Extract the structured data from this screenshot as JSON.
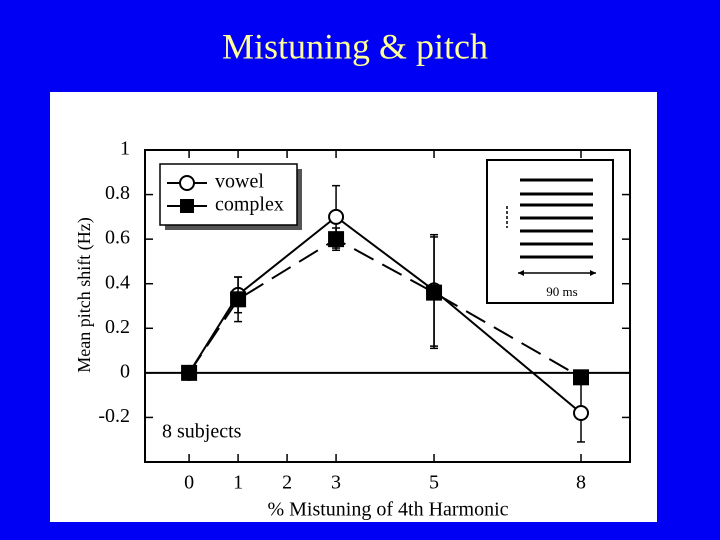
{
  "chart_data": {
    "type": "line",
    "title": "Mistuning & pitch",
    "x_label": "% Mistuning of 4th Harmonic",
    "y_label": "Mean pitch shift (Hz)",
    "annotations": [
      "8 subjects",
      "90 ms"
    ],
    "x": [
      0,
      1,
      3,
      5,
      8
    ],
    "xlim": [
      -0.9,
      9
    ],
    "xticks": [
      0,
      1,
      2,
      3,
      5,
      8
    ],
    "ylim": [
      -0.4,
      1
    ],
    "yticks": [
      -0.2,
      0,
      0.2,
      0.4,
      0.6,
      0.8,
      1
    ],
    "series": [
      {
        "name": "vowel",
        "color": "#000000",
        "marker": "open-circle",
        "dash": false,
        "values": [
          0,
          0.35,
          0.7,
          0.37,
          -0.18
        ],
        "errors": [
          0,
          0.08,
          0.14,
          0.25,
          0.13
        ]
      },
      {
        "name": "complex",
        "color": "#000000",
        "marker": "filled-square",
        "dash": true,
        "values": [
          0,
          0.33,
          0.6,
          0.36,
          -0.02
        ],
        "errors": [
          0,
          0.1,
          0.05,
          0.25,
          0
        ]
      }
    ]
  }
}
